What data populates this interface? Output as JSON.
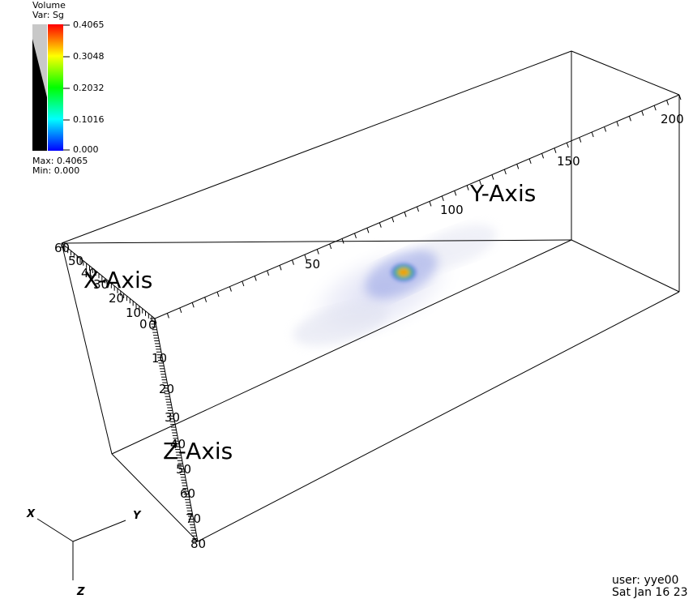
{
  "legend": {
    "title": "Volume",
    "variable": "Var: Sg",
    "ticks": [
      "0.4065",
      "0.3048",
      "0.2032",
      "0.1016",
      "0.000"
    ],
    "max": "Max: 0.4065",
    "min": "Min: 0.000",
    "colors": [
      "#ff0000",
      "#ffff00",
      "#00ff00",
      "#00ffff",
      "#0000ff"
    ]
  },
  "axes": {
    "x": {
      "title": "X-Axis",
      "ticks": [
        "0",
        "10",
        "20",
        "30",
        "40",
        "50",
        "60"
      ]
    },
    "y": {
      "title": "Y-Axis",
      "ticks": [
        "50",
        "100",
        "150",
        "200"
      ]
    },
    "z": {
      "title": "Z-Axis",
      "ticks": [
        "0",
        "10",
        "20",
        "30",
        "40",
        "50",
        "60",
        "70",
        "80"
      ]
    }
  },
  "triad": {
    "x": "X",
    "y": "Y",
    "z": "Z"
  },
  "footer": {
    "user": "user: yye00",
    "date": "Sat Jan 16 23"
  }
}
